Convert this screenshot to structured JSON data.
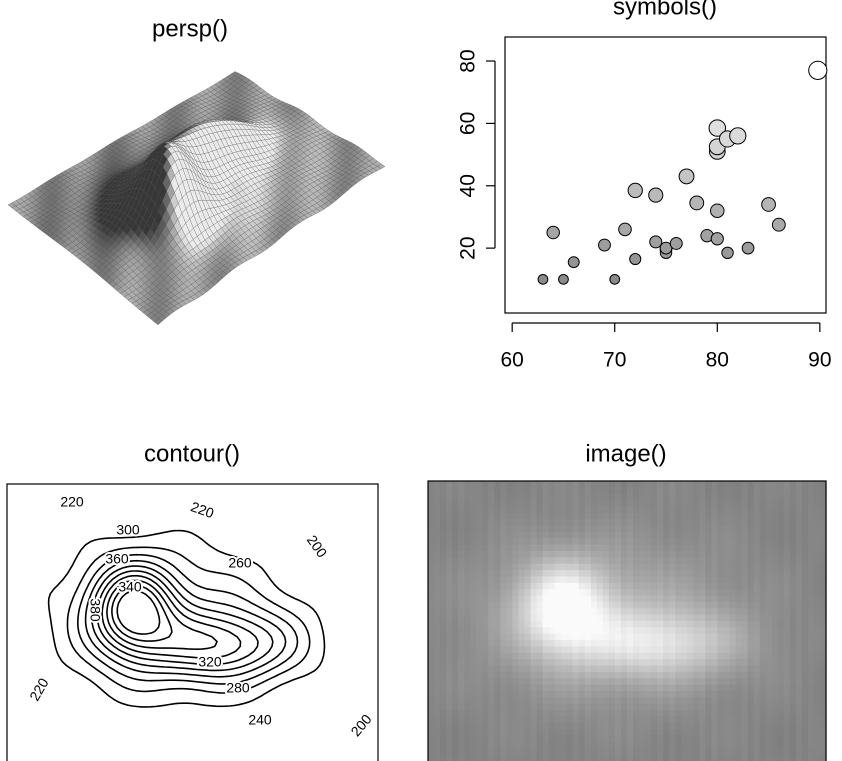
{
  "chart_data": [
    {
      "type": "persp",
      "title": "persp()"
    },
    {
      "type": "scatter",
      "title": "symbols()",
      "x": [
        63,
        65,
        66,
        64,
        69,
        70,
        71,
        72,
        72,
        74,
        74,
        75,
        75,
        75,
        76,
        77,
        78,
        79,
        80,
        80,
        80,
        80,
        80,
        81,
        81,
        82,
        83,
        85,
        86,
        89.8
      ],
      "values": [
        10,
        10,
        15.5,
        25,
        21,
        10,
        26,
        38.5,
        16.5,
        22,
        37,
        19.5,
        18.5,
        20,
        21.5,
        43,
        34.5,
        24,
        32,
        23,
        51,
        52.5,
        58.5,
        18.5,
        55,
        56,
        20,
        34,
        27.5,
        77
      ],
      "color_scale": [
        "#8a8a8a",
        "#ffffff"
      ],
      "xlim": [
        59.3,
        90.6
      ],
      "ylim": [
        -0.8,
        87.7
      ],
      "xticks": [
        60,
        70,
        80,
        90
      ],
      "yticks": [
        20,
        40,
        60,
        80
      ]
    },
    {
      "type": "contour",
      "title": "contour()",
      "levels": [
        200,
        220,
        240,
        260,
        280,
        300,
        320,
        340,
        360,
        380
      ],
      "labels": [
        220,
        220,
        220,
        200,
        200,
        300,
        360,
        340,
        380,
        260,
        320,
        280,
        240
      ]
    },
    {
      "type": "image",
      "title": "image()"
    }
  ]
}
